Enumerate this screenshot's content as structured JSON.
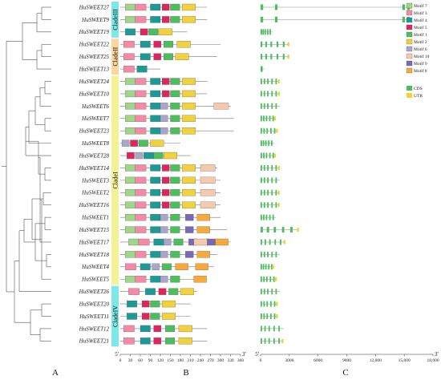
{
  "genes": [
    "HuSWEET27",
    "HuSWEET9",
    "HuSWEET19",
    "HuSWEET22",
    "HuSWEET25",
    "HuSWEET13",
    "HuSWEET24",
    "HuSWEET10",
    "HuSWEET6",
    "HuSWEET7",
    "HuSWEET23",
    "HuSWEET8",
    "HuSWEET28",
    "HuSWEET14",
    "HuSWEET3",
    "HuSWEET2",
    "HuSWEET16",
    "HuSWEET1",
    "HuSWEET15",
    "HuSWEET17",
    "HuSWEET18",
    "HuSWEET4",
    "HuSWEET5",
    "HuSWEET26",
    "HuSWEET20",
    "HuSWEET11",
    "HuSWEET12",
    "HuSWEET21"
  ],
  "clades": [
    {
      "label": "CladeIII",
      "color": "#7ee8e8"
    },
    {
      "label": "CladeII",
      "color": "#fbd79e"
    },
    {
      "label": "CladeI",
      "color": "#f2f296"
    },
    {
      "label": "CladeIV",
      "color": "#7ee8e8"
    }
  ],
  "motif_colors": {
    "Motif 7": "#9fd68a",
    "Motif 3": "#f58aa6",
    "Motif 4": "#1b9a96",
    "Motif 5": "#e0245e",
    "Motif 1": "#4cbe5e",
    "Motif 2": "#f2d23c",
    "Motif 6": "#a9a6cc",
    "Motif 10": "#f5c9ad",
    "Motif 9": "#7b68b4",
    "Motif 8": "#f7a93a"
  },
  "legend_motifs": [
    "Motif 7",
    "Motif 3",
    "Motif 4",
    "Motif 5",
    "Motif 1",
    "Motif 2",
    "Motif 6",
    "Motif 10",
    "Motif 9",
    "Motif 8"
  ],
  "legend_structure": [
    {
      "label": "CDS",
      "color": "#4cbe5e"
    },
    {
      "label": "UTR",
      "color": "#f2d23c"
    }
  ],
  "motif_axis": {
    "start": "5'",
    "end": "3'",
    "ticks": [
      "0",
      "30",
      "60",
      "90",
      "120",
      "150",
      "180",
      "210",
      "240",
      "270",
      "300",
      "330",
      "360"
    ]
  },
  "structure_axis": {
    "start": "5'",
    "end": "3'",
    "ticks": [
      "0",
      "3000",
      "6000",
      "9000",
      "12,000",
      "15,000",
      "18,000"
    ]
  },
  "panel_labels": [
    "A",
    "B",
    "C"
  ]
}
